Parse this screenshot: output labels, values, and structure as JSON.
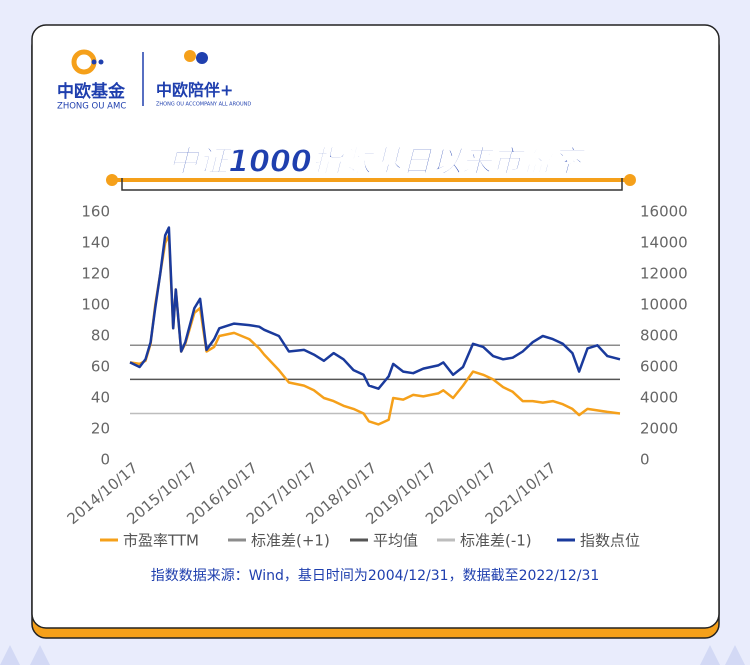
{
  "header": {
    "brand": "中欧基金",
    "brand_sub": "ZHONG OU AMC",
    "partner": "中欧陪伴+",
    "partner_sub": "ZHONG OU ACCOMPANY ALL AROUND"
  },
  "chart_data": {
    "type": "line",
    "title": "中证1000指数基日以来市盈率",
    "x": [
      "2014/10/17",
      "2014/12/15",
      "2015/01/20",
      "2015/02/20",
      "2015/03/20",
      "2015/04/20",
      "2015/05/20",
      "2015/06/12",
      "2015/07/08",
      "2015/07/24",
      "2015/08/26",
      "2015/09/20",
      "2015/11/15",
      "2015/12/20",
      "2016/01/28",
      "2016/03/15",
      "2016/04/15",
      "2016/07/15",
      "2016/10/15",
      "2016/12/15",
      "2017/01/15",
      "2017/04/15",
      "2017/06/15",
      "2017/09/15",
      "2017/11/15",
      "2018/01/15",
      "2018/03/15",
      "2018/05/15",
      "2018/07/15",
      "2018/09/15",
      "2018/10/17",
      "2018/12/15",
      "2019/02/15",
      "2019/03/15",
      "2019/05/15",
      "2019/07/15",
      "2019/09/15",
      "2019/12/15",
      "2020/01/15",
      "2020/03/15",
      "2020/05/15",
      "2020/07/15",
      "2020/09/15",
      "2020/11/15",
      "2021/01/15",
      "2021/03/15",
      "2021/05/15",
      "2021/07/15",
      "2021/09/15",
      "2021/11/15",
      "2022/01/15",
      "2022/03/15",
      "2022/04/25",
      "2022/06/15",
      "2022/08/15",
      "2022/10/15",
      "2022/12/31"
    ],
    "series": [
      {
        "name": "市盈率TTM",
        "color": "#f5a01a",
        "values": [
          63,
          62,
          64,
          75,
          100,
          120,
          140,
          145,
          85,
          110,
          70,
          75,
          95,
          98,
          70,
          73,
          80,
          82,
          78,
          72,
          68,
          58,
          50,
          48,
          45,
          40,
          38,
          35,
          33,
          30,
          25,
          23,
          26,
          40,
          39,
          42,
          41,
          43,
          45,
          40,
          48,
          57,
          55,
          52,
          47,
          44,
          38,
          38,
          37,
          38,
          36,
          33,
          29,
          33,
          32,
          31,
          30
        ]
      },
      {
        "name": "指数点位",
        "color": "#1a3a9c",
        "axis": "y2",
        "values": [
          6300,
          6000,
          6500,
          7600,
          9800,
          12000,
          14500,
          15000,
          8500,
          11000,
          7000,
          7600,
          9800,
          10400,
          7100,
          7800,
          8500,
          8800,
          8700,
          8600,
          8400,
          8000,
          7000,
          7100,
          6800,
          6400,
          6900,
          6500,
          5800,
          5500,
          4800,
          4600,
          5400,
          6200,
          5700,
          5600,
          5900,
          6100,
          6300,
          5500,
          6000,
          7500,
          7300,
          6700,
          6500,
          6600,
          7000,
          7600,
          8000,
          7800,
          7500,
          6900,
          5700,
          7200,
          7400,
          6700,
          6500
        ]
      }
    ],
    "hlines": [
      {
        "name": "标准差(+1)",
        "value": 74,
        "color": "#8c8c8c"
      },
      {
        "name": "平均值",
        "value": 52,
        "color": "#555555"
      },
      {
        "name": "标准差(-1)",
        "value": 30,
        "color": "#bdbdbd"
      }
    ],
    "xlim": [
      "2014/10/17",
      "2022/12/31"
    ],
    "xticks": [
      "2014/10/17",
      "2015/10/17",
      "2016/10/17",
      "2017/10/17",
      "2018/10/17",
      "2019/10/17",
      "2020/10/17",
      "2021/10/17"
    ],
    "ylim": [
      0,
      160
    ],
    "yticks": [
      0,
      20,
      40,
      60,
      80,
      100,
      120,
      140,
      160
    ],
    "y2lim": [
      0,
      16000
    ],
    "y2ticks": [
      0,
      2000,
      4000,
      6000,
      8000,
      10000,
      12000,
      14000,
      16000
    ],
    "note": "指数数据来源：Wind，基日时间为2004/12/31，数据截至2022/12/31"
  }
}
